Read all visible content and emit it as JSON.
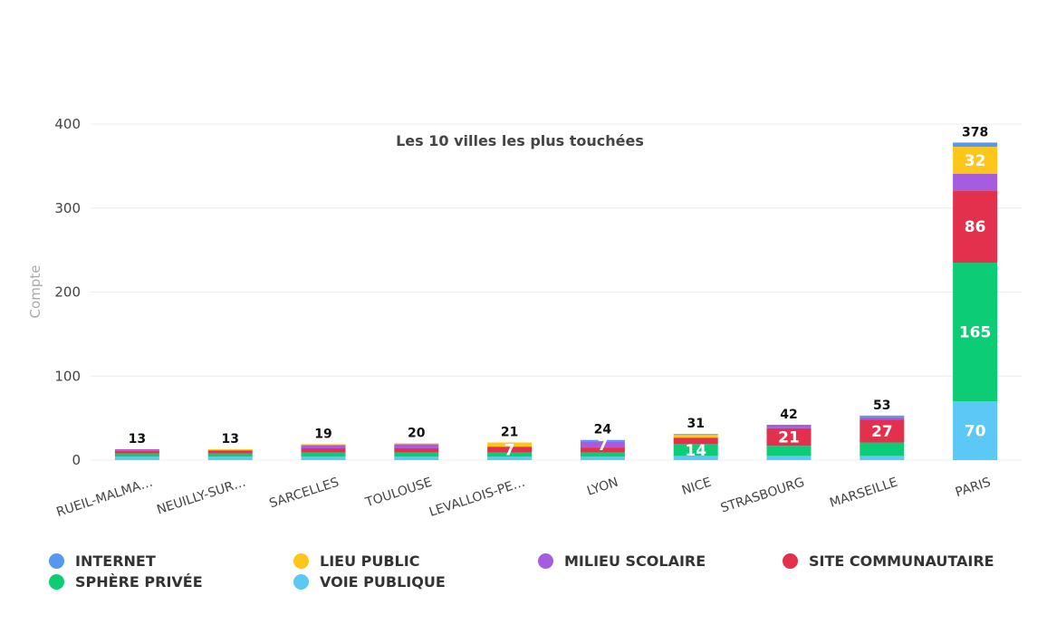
{
  "chart_data": {
    "type": "bar",
    "stacked": true,
    "title": "Les 10 villes les plus touchées",
    "xlabel": "",
    "ylabel": "Compte",
    "ylim": [
      0,
      400
    ],
    "yticks": [
      0,
      100,
      200,
      300,
      400
    ],
    "grid": true,
    "legend_position": "bottom",
    "categories": [
      "RUEIL-MALMA…",
      "NEUILLY-SUR…",
      "SARCELLES",
      "TOULOUSE",
      "LEVALLOIS-PE…",
      "LYON",
      "NICE",
      "STRASBOURG",
      "MARSEILLE",
      "PARIS"
    ],
    "totals": [
      13,
      13,
      19,
      20,
      21,
      24,
      31,
      42,
      53,
      378
    ],
    "series": [
      {
        "name": "VOIE PUBLIQUE",
        "color": "#5bc8f5",
        "values": [
          4,
          4,
          4,
          4,
          4,
          4,
          5,
          5,
          5,
          70
        ]
      },
      {
        "name": "SPHÈRE PRIVÉE",
        "color": "#0ccd75",
        "values": [
          4,
          4,
          5,
          5,
          5,
          5,
          14,
          12,
          16,
          165
        ]
      },
      {
        "name": "SITE COMMUNAUTAIRE",
        "color": "#e3314d",
        "values": [
          3,
          3,
          5,
          5,
          7,
          6,
          7,
          21,
          27,
          86
        ]
      },
      {
        "name": "MILIEU SCOLAIRE",
        "color": "#a55ce0",
        "values": [
          2,
          1,
          4,
          5,
          0,
          7,
          1,
          4,
          3,
          20
        ]
      },
      {
        "name": "LIEU PUBLIC",
        "color": "#ffc61a",
        "values": [
          0,
          1,
          1,
          1,
          5,
          0,
          3,
          0,
          0,
          32
        ]
      },
      {
        "name": "INTERNET",
        "color": "#5697f0",
        "values": [
          0,
          0,
          0,
          0,
          0,
          2,
          1,
          0,
          2,
          5
        ]
      }
    ],
    "segment_labels": [
      {
        "category": "LEVALLOIS-PE…",
        "series": "SITE COMMUNAUTAIRE",
        "text": "7"
      },
      {
        "category": "LYON",
        "series": "MILIEU SCOLAIRE",
        "text": "7"
      },
      {
        "category": "NICE",
        "series": "SPHÈRE PRIVÉE",
        "text": "14"
      },
      {
        "category": "STRASBOURG",
        "series": "SITE COMMUNAUTAIRE",
        "text": "21"
      },
      {
        "category": "MARSEILLE",
        "series": "SITE COMMUNAUTAIRE",
        "text": "27"
      },
      {
        "category": "PARIS",
        "series": "VOIE PUBLIQUE",
        "text": "70"
      },
      {
        "category": "PARIS",
        "series": "SPHÈRE PRIVÉE",
        "text": "165"
      },
      {
        "category": "PARIS",
        "series": "SITE COMMUNAUTAIRE",
        "text": "86"
      },
      {
        "category": "PARIS",
        "series": "LIEU PUBLIC",
        "text": "32"
      }
    ]
  },
  "legend": [
    {
      "label": "INTERNET",
      "color": "#5697f0"
    },
    {
      "label": "LIEU PUBLIC",
      "color": "#ffc61a"
    },
    {
      "label": "MILIEU SCOLAIRE",
      "color": "#a55ce0"
    },
    {
      "label": "SITE COMMUNAUTAIRE",
      "color": "#e3314d"
    },
    {
      "label": "SPHÈRE PRIVÉE",
      "color": "#0ccd75"
    },
    {
      "label": "VOIE PUBLIQUE",
      "color": "#5bc8f5"
    }
  ]
}
